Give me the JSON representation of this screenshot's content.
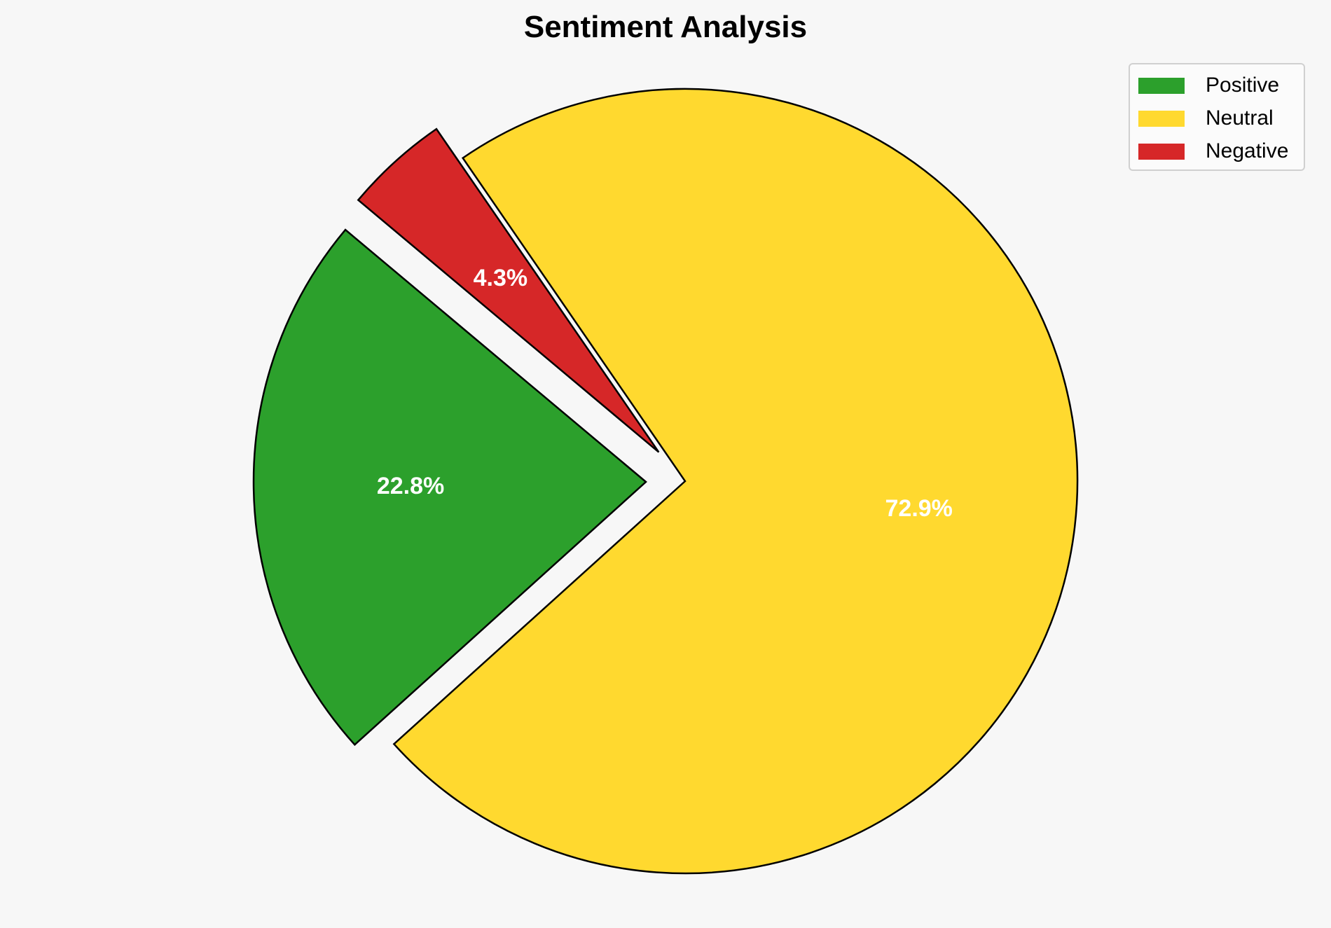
{
  "chart_data": {
    "type": "pie",
    "title": "Sentiment Analysis",
    "labels": [
      "Positive",
      "Neutral",
      "Negative"
    ],
    "values": [
      22.8,
      72.9,
      4.3
    ],
    "value_labels": [
      "22.8%",
      "72.9%",
      "4.3%"
    ],
    "colors": [
      "#2ca02c",
      "#ffd92f",
      "#d62728"
    ],
    "explode": [
      0.1,
      0,
      0.1
    ],
    "start_angle": 140,
    "direction": "counterclockwise",
    "edge_color": "#000000",
    "label_color": "#ffffff",
    "legend_position": "top-right"
  }
}
